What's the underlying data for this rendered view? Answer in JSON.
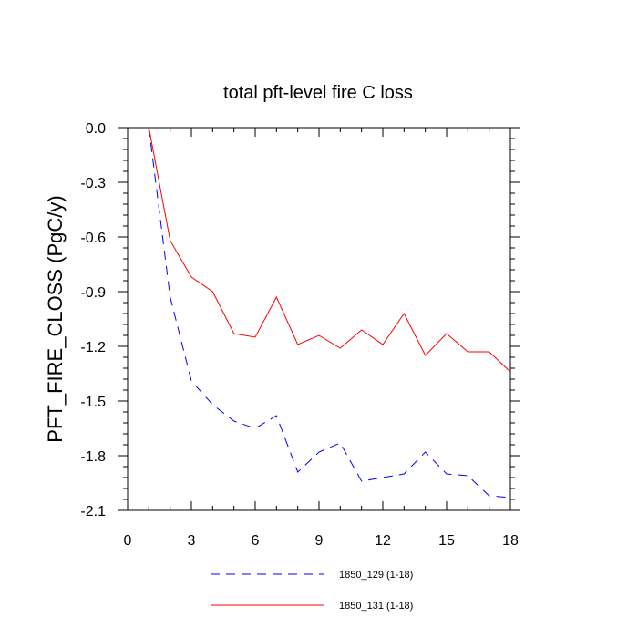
{
  "chart_data": {
    "type": "line",
    "title": "total pft-level fire C loss",
    "xlabel": "",
    "ylabel": "PFT_FIRE_CLOSS  (PgC/y)",
    "xlim": [
      0,
      18
    ],
    "ylim": [
      -2.1,
      0.0
    ],
    "xticks": [
      0,
      3,
      6,
      9,
      12,
      15,
      18
    ],
    "yticks": [
      0.0,
      -0.3,
      -0.6,
      -0.9,
      -1.2,
      -1.5,
      -1.8,
      -2.1
    ],
    "xtick_labels": [
      "0",
      "3",
      "6",
      "9",
      "12",
      "15",
      "18"
    ],
    "ytick_labels": [
      "0.0",
      "-0.3",
      "-0.6",
      "-0.9",
      "-1.2",
      "-1.5",
      "-1.8",
      "-2.1"
    ],
    "grid": false,
    "legend_position": "bottom",
    "x": [
      1,
      2,
      3,
      4,
      5,
      6,
      7,
      8,
      9,
      10,
      11,
      12,
      13,
      14,
      15,
      16,
      17,
      18
    ],
    "series": [
      {
        "name": "1850_129 (1-18)",
        "color": "#0000ff",
        "dash": "dashed",
        "values": [
          0.0,
          -0.93,
          -1.39,
          -1.52,
          -1.61,
          -1.65,
          -1.58,
          -1.89,
          -1.78,
          -1.73,
          -1.94,
          -1.92,
          -1.9,
          -1.78,
          -1.9,
          -1.91,
          -2.02,
          -2.03
        ]
      },
      {
        "name": "1850_131 (1-18)",
        "color": "#ff0000",
        "dash": "solid",
        "values": [
          0.0,
          -0.62,
          -0.82,
          -0.9,
          -1.13,
          -1.15,
          -0.93,
          -1.19,
          -1.14,
          -1.21,
          -1.11,
          -1.19,
          -1.02,
          -1.25,
          -1.13,
          -1.23,
          -1.23,
          -1.34
        ]
      }
    ]
  }
}
